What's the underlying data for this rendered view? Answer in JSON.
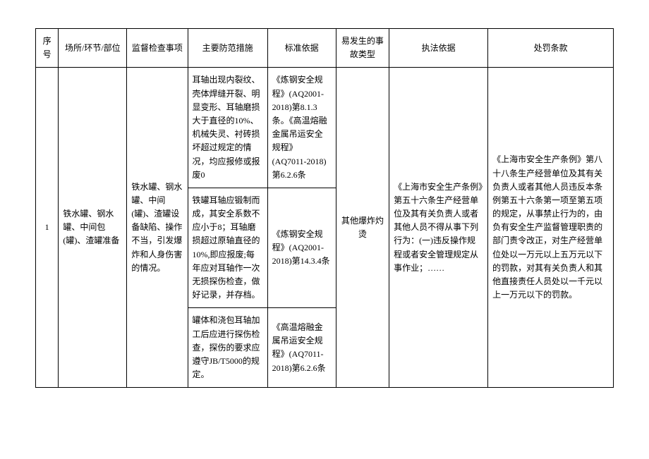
{
  "headers": {
    "seq": "序号",
    "place": "场所/环节/部位",
    "supervise": "监督检查事项",
    "measure": "主要防范措施",
    "standard": "标准依据",
    "accident": "易发生的事故类型",
    "law": "执法依据",
    "penalty": "处罚条款"
  },
  "rows": [
    {
      "seq": "1",
      "place": "铁水罐、钢水罐、中间包(罐)、渣罐准备",
      "supervise": "铁水罐、钢水罐、中间(罐)、渣罐设备缺陷、操作不当，引发爆炸和人身伤害的情况。",
      "measures": [
        {
          "text": "耳轴出现内裂纹、壳体焊缝开裂、明显变形、耳轴磨损大于直径的10%、机械失灵、衬砖损坏超过规定的情况，均应报修或报废0",
          "standard": "《炼钢安全规程》(AQ2001-2018)第8.1.3条。《高温熔融金属吊运安全规程》(AQ7011-2018)第6.2.6条"
        },
        {
          "text": "铁罐耳轴应锻制而成，其安全系数不应小于8；耳轴磨损超过原轴直径的10%,即应报废;每年应对耳轴作一次无损探伤检查，做好记录，并存档。",
          "standard": "《炼钢安全规程》(AQ2001-2018)第14.3.4条"
        },
        {
          "text": "罐体和浇包耳轴加工后应进行探伤检查，探伤的要求应遵守JB/T5000的规定。",
          "standard": "《高温熔融金属吊运安全规程》(AQ7011-2018)第6.2.6条"
        }
      ],
      "accident": "其他爆炸灼烫",
      "law": "《上海市安全生产条例》第五十六条生产经营单位及其有关负责人或者其他人员不得从事下列行为：(一)违反操作规程或者安全管理规定从事作业；……",
      "penalty": "《上海市安全生产条例》第八十八条生产经营单位及其有关负责人或者其他人员违反本条例第五十六条第一项至第五项的规定，从事禁止行为的，由负有安全生产监督管理职责的部门责令改正，对生产经营单位处以一万元以上五万元以下的罚款，对其有关负责人和其他直接责任人员处以一千元以上一万元以下的罚款。"
    }
  ]
}
